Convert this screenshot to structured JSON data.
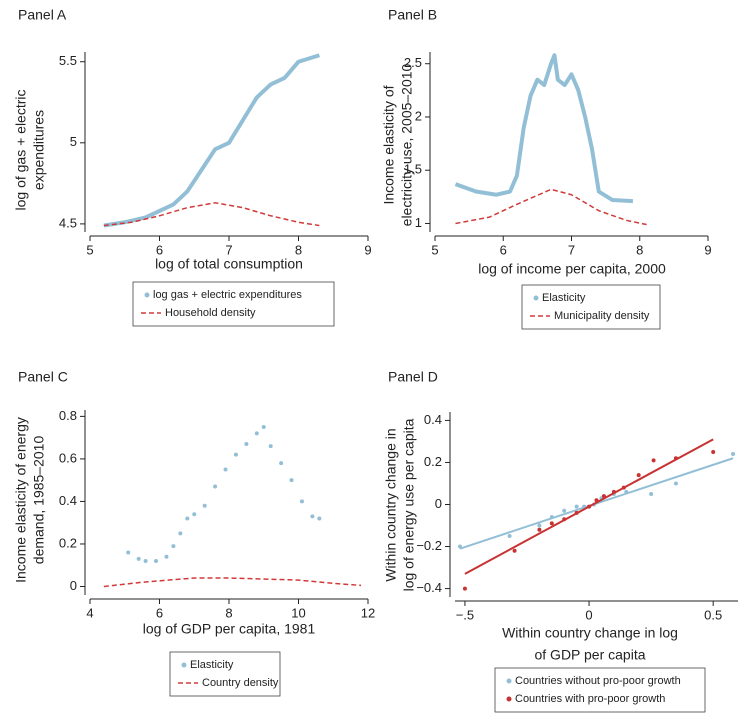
{
  "chart_data": [
    {
      "type": "line",
      "title": "Panel A",
      "xlabel": [
        "log of total consumption"
      ],
      "ylabel": [
        "log of gas + electric",
        "expenditures"
      ],
      "xlim": [
        5,
        9
      ],
      "xticks": [
        5,
        6,
        7,
        8,
        9
      ],
      "ylim": [
        4.45,
        5.56
      ],
      "yticks": [
        4.5,
        5,
        5.5
      ],
      "series": [
        {
          "name": "log gas + electric expenditures",
          "color": "#92bfd6",
          "style": "line",
          "x": [
            5.2,
            5.5,
            5.8,
            6.0,
            6.2,
            6.4,
            6.6,
            6.8,
            7.0,
            7.2,
            7.4,
            7.6,
            7.8,
            8.0,
            8.3
          ],
          "values": [
            4.49,
            4.51,
            4.54,
            4.58,
            4.62,
            4.7,
            4.83,
            4.96,
            5.0,
            5.14,
            5.28,
            5.36,
            5.4,
            5.5,
            5.54
          ]
        },
        {
          "name": "Household density",
          "color": "#d03a3a",
          "style": "dashed",
          "x": [
            5.2,
            5.6,
            6.0,
            6.4,
            6.8,
            7.2,
            7.6,
            8.0,
            8.3
          ],
          "values": [
            4.49,
            4.51,
            4.55,
            4.6,
            4.63,
            4.6,
            4.55,
            4.51,
            4.49
          ]
        }
      ]
    },
    {
      "type": "line",
      "title": "Panel B",
      "xlabel": [
        "log of income per capita, 2000"
      ],
      "ylabel": [
        "Income elasticity of",
        "electricity use, 2005–2010"
      ],
      "xlim": [
        5,
        9
      ],
      "xticks": [
        5,
        6,
        7,
        8,
        9
      ],
      "ylim": [
        0.92,
        2.61
      ],
      "yticks": [
        1,
        1.5,
        2,
        2.5
      ],
      "series": [
        {
          "name": "Elasticity",
          "color": "#92bfd6",
          "style": "line",
          "x": [
            5.3,
            5.6,
            5.9,
            6.1,
            6.2,
            6.3,
            6.4,
            6.5,
            6.6,
            6.7,
            6.75,
            6.8,
            6.9,
            7.0,
            7.1,
            7.2,
            7.3,
            7.4,
            7.6,
            7.9
          ],
          "values": [
            1.37,
            1.3,
            1.27,
            1.3,
            1.45,
            1.9,
            2.2,
            2.35,
            2.3,
            2.5,
            2.58,
            2.35,
            2.3,
            2.4,
            2.25,
            2.0,
            1.7,
            1.3,
            1.22,
            1.21
          ]
        },
        {
          "name": "Municipality density",
          "color": "#d03a3a",
          "style": "dashed",
          "x": [
            5.3,
            5.8,
            6.2,
            6.7,
            7.0,
            7.4,
            7.8,
            8.1
          ],
          "values": [
            1.0,
            1.06,
            1.18,
            1.32,
            1.27,
            1.12,
            1.03,
            0.99
          ]
        }
      ]
    },
    {
      "type": "line",
      "title": "Panel C",
      "xlabel": [
        "log of GDP per capita, 1981"
      ],
      "ylabel": [
        "Income elasticity of energy",
        "demand, 1985–2010"
      ],
      "xlim": [
        4,
        12
      ],
      "xticks": [
        4,
        6,
        8,
        10,
        12
      ],
      "ylim": [
        -0.04,
        0.83
      ],
      "yticks": [
        0,
        0.2,
        0.4,
        0.6,
        0.8
      ],
      "series": [
        {
          "name": "Elasticity",
          "color": "#92bfd6",
          "style": "dots",
          "x": [
            5.1,
            5.4,
            5.6,
            5.9,
            6.2,
            6.4,
            6.6,
            6.8,
            7.0,
            7.3,
            7.6,
            7.9,
            8.2,
            8.5,
            8.8,
            9.0,
            9.2,
            9.5,
            9.8,
            10.1,
            10.4,
            10.6
          ],
          "values": [
            0.16,
            0.13,
            0.12,
            0.12,
            0.14,
            0.19,
            0.25,
            0.32,
            0.34,
            0.38,
            0.47,
            0.55,
            0.62,
            0.67,
            0.72,
            0.75,
            0.66,
            0.58,
            0.5,
            0.4,
            0.33,
            0.32
          ]
        },
        {
          "name": "Country density",
          "color": "#d03a3a",
          "style": "dashed",
          "x": [
            4.4,
            5.5,
            7,
            8,
            9,
            10,
            11,
            11.8
          ],
          "values": [
            0.0,
            0.02,
            0.04,
            0.04,
            0.035,
            0.03,
            0.015,
            0.005
          ]
        }
      ]
    },
    {
      "type": "scatter",
      "title": "Panel D",
      "xlabel": [
        "Within country change in log",
        "of GDP per capita"
      ],
      "ylabel": [
        "Within country change in",
        "log of energy use per capita"
      ],
      "xlim": [
        -0.54,
        0.6
      ],
      "xticks": [
        {
          "value": -0.5,
          "label": "−.5"
        },
        0,
        0.5
      ],
      "ylim": [
        -0.44,
        0.44
      ],
      "yticks": [
        {
          "value": -0.4,
          "label": "−0.4"
        },
        {
          "value": -0.2,
          "label": "−0.2"
        },
        0,
        0.2,
        0.4
      ],
      "series": [
        {
          "name": "Countries without pro-poor growth",
          "color": "#92bfd6",
          "style": "dots",
          "x": [
            -0.52,
            -0.32,
            -0.2,
            -0.15,
            -0.1,
            -0.05,
            -0.02,
            0.02,
            0.05,
            0.1,
            0.15,
            0.25,
            0.35,
            0.58
          ],
          "values": [
            -0.2,
            -0.15,
            -0.1,
            -0.06,
            -0.03,
            -0.01,
            -0.01,
            0.0,
            0.03,
            0.05,
            0.06,
            0.05,
            0.1,
            0.24
          ],
          "fit_x": [
            -0.52,
            0.58
          ],
          "fit_y": [
            -0.21,
            0.22
          ]
        },
        {
          "name": "Countries with pro-poor growth",
          "color": "#c83232",
          "style": "dots",
          "x": [
            -0.5,
            -0.3,
            -0.2,
            -0.15,
            -0.1,
            -0.05,
            0,
            0.03,
            0.06,
            0.1,
            0.14,
            0.2,
            0.26,
            0.35,
            0.5
          ],
          "values": [
            -0.4,
            -0.22,
            -0.12,
            -0.09,
            -0.07,
            -0.04,
            -0.01,
            0.02,
            0.04,
            0.06,
            0.08,
            0.14,
            0.21,
            0.22,
            0.25
          ],
          "fit_x": [
            -0.5,
            0.5
          ],
          "fit_y": [
            -0.33,
            0.31
          ]
        }
      ]
    }
  ]
}
